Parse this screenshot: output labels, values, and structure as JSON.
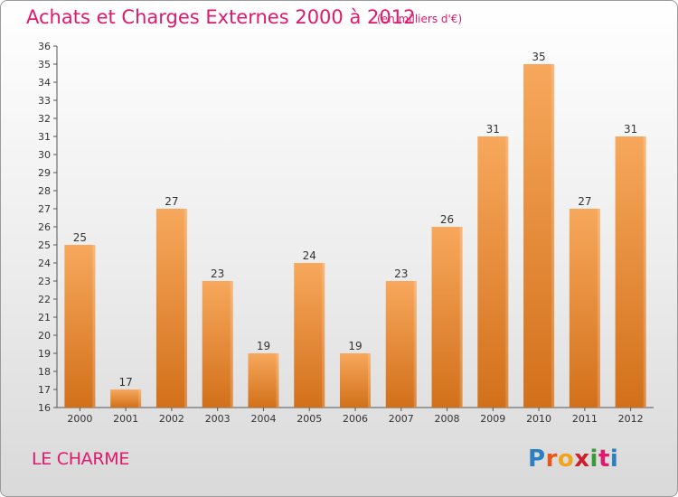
{
  "header": {
    "title": "Achats et Charges Externes 2000 à 2012",
    "subtitle": "(en milliers d'€)"
  },
  "footer": {
    "commune": "LE CHARME",
    "brand": "Proxiti",
    "brand_letters": [
      "P",
      "r",
      "o",
      "x",
      "i",
      "t",
      "i"
    ],
    "brand_colors": [
      "#2c7fc0",
      "#e8561a",
      "#f0a41c",
      "#cc1e2b",
      "#3a9a3a",
      "#e0196e",
      "#2c7fc0"
    ]
  },
  "colors": {
    "title": "#e0196e",
    "bar_top": "#f7a85c",
    "bar_bottom": "#d2701a",
    "axis": "#555555"
  },
  "chart_data": {
    "type": "bar",
    "categories": [
      "2000",
      "2001",
      "2002",
      "2003",
      "2004",
      "2005",
      "2006",
      "2007",
      "2008",
      "2009",
      "2010",
      "2011",
      "2012"
    ],
    "values": [
      25,
      17,
      27,
      23,
      19,
      24,
      19,
      23,
      26,
      31,
      35,
      27,
      31
    ],
    "data_labels": [
      "25",
      "17",
      "27",
      "23",
      "19",
      "24",
      "19",
      "23",
      "26",
      "31",
      "35",
      "27",
      "31"
    ],
    "title": "Achats et Charges Externes 2000 à 2012",
    "xlabel": "",
    "ylabel": "",
    "ylim": [
      16,
      36
    ],
    "yticks": [
      "16",
      "17",
      "18",
      "19",
      "20",
      "21",
      "22",
      "23",
      "24",
      "25",
      "26",
      "27",
      "28",
      "29",
      "30",
      "31",
      "32",
      "33",
      "34",
      "35",
      "36"
    ],
    "grid": false
  }
}
